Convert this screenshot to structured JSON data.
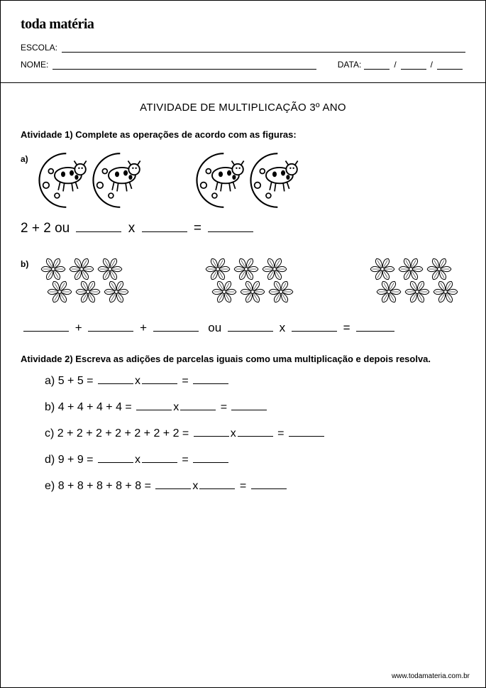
{
  "brand": "toda matéria",
  "header": {
    "escola_label": "ESCOLA:",
    "nome_label": "NOME:",
    "data_label": "DATA:",
    "date_sep": "/"
  },
  "title": "ATIVIDADE DE MULTIPLICAÇÃO 3º ANO",
  "activity1": {
    "prompt": "Atividade 1) Complete as operações de acordo com as figuras:",
    "a_label": "a)",
    "b_label": "b)",
    "a_expr_prefix": "2 + 2 ou",
    "x_sym": "x",
    "eq_sym": "=",
    "plus_sym": "+",
    "ou_word": "ou"
  },
  "activity2": {
    "prompt_part1": "Atividade 2) Escreva as adições de parcelas iguais como uma multiplicação e",
    "prompt_part2": " depois resolva.",
    "items": [
      {
        "letter": "a)",
        "sum": "5 + 5 ="
      },
      {
        "letter": "b)",
        "sum": "4 + 4 + 4 + 4 ="
      },
      {
        "letter": "c)",
        "sum": "2 + 2 + 2 + 2 + 2 + 2 + 2 ="
      },
      {
        "letter": "d)",
        "sum": "9 + 9 ="
      },
      {
        "letter": "e)",
        "sum": "8 + 8 + 8 + 8 + 8 ="
      }
    ]
  },
  "footer": "www.todamateria.com.br",
  "colors": {
    "text": "#000000",
    "background": "#ffffff",
    "line": "#000000"
  },
  "graphics": {
    "cow_moon_count_per_group": 2,
    "cow_moon_groups": 2,
    "flower_group_count": 3,
    "flowers_per_group_row1": 3,
    "flowers_per_group_row2": 3
  }
}
